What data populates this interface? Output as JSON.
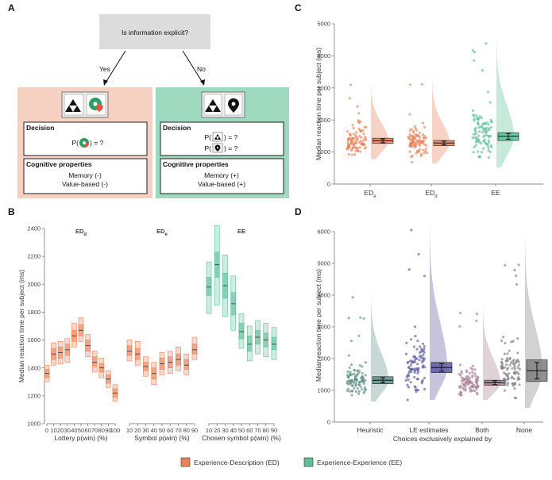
{
  "panel_labels": {
    "a": "A",
    "b": "B",
    "c": "C",
    "d": "D"
  },
  "colors": {
    "ed": "#e8825a",
    "ee": "#5cbf98",
    "ed_bg": "#f6d0c1",
    "ee_bg": "#9fd9bf",
    "heuristic": "#5f8f86",
    "le": "#5e5a9f",
    "both": "#a67f93",
    "none": "#7f7f7f"
  },
  "diagram": {
    "question": "Is information explicit?",
    "yes": "Yes",
    "no": "No",
    "left": {
      "decision_title": "Decision",
      "decision_prefix": "P(",
      "decision_suffix": ") = ?",
      "cog_title": "Cognitive properties",
      "cog_lines": [
        "Memory (-)",
        "Value-based (-)"
      ]
    },
    "right": {
      "decision_title": "Decision",
      "decision_lines": [
        {
          "prefix": "P(",
          "suffix": ") = ?"
        },
        {
          "prefix": "P(",
          "suffix": ") = ?"
        }
      ],
      "cog_title": "Cognitive properties",
      "cog_lines": [
        "Memory (+)",
        "Value-based (+)"
      ]
    }
  },
  "chart_data": [
    {
      "id": "B",
      "type": "bar",
      "ylabel": "Median reaction time per subject (ms)",
      "ylim": [
        1000,
        2400
      ],
      "yticks": [
        1000,
        1200,
        1400,
        1600,
        1800,
        2000,
        2200,
        2400
      ],
      "series": [
        {
          "name": "ED",
          "title": "ED",
          "title_sub": "d",
          "xlabel": "Lottery p(win) (%)",
          "color": "ed",
          "xticks": [
            "0",
            "10",
            "20",
            "30",
            "40",
            "50",
            "60",
            "70",
            "80",
            "90",
            "100"
          ],
          "points": [
            {
              "x": 0,
              "median": 1360,
              "inner": [
                1330,
                1390
              ],
              "outer": [
                1300,
                1420
              ]
            },
            {
              "x": 10,
              "median": 1500,
              "inner": [
                1460,
                1540
              ],
              "outer": [
                1420,
                1580
              ]
            },
            {
              "x": 20,
              "median": 1510,
              "inner": [
                1470,
                1550
              ],
              "outer": [
                1430,
                1590
              ]
            },
            {
              "x": 30,
              "median": 1530,
              "inner": [
                1490,
                1570
              ],
              "outer": [
                1440,
                1610
              ]
            },
            {
              "x": 40,
              "median": 1630,
              "inner": [
                1590,
                1670
              ],
              "outer": [
                1550,
                1720
              ]
            },
            {
              "x": 50,
              "median": 1670,
              "inner": [
                1630,
                1710
              ],
              "outer": [
                1590,
                1760
              ]
            },
            {
              "x": 60,
              "median": 1560,
              "inner": [
                1520,
                1600
              ],
              "outer": [
                1480,
                1640
              ]
            },
            {
              "x": 70,
              "median": 1440,
              "inner": [
                1410,
                1480
              ],
              "outer": [
                1370,
                1520
              ]
            },
            {
              "x": 80,
              "median": 1400,
              "inner": [
                1370,
                1430
              ],
              "outer": [
                1330,
                1470
              ]
            },
            {
              "x": 90,
              "median": 1320,
              "inner": [
                1290,
                1350
              ],
              "outer": [
                1260,
                1380
              ]
            },
            {
              "x": 100,
              "median": 1220,
              "inner": [
                1190,
                1250
              ],
              "outer": [
                1160,
                1280
              ]
            }
          ]
        },
        {
          "name": "ED",
          "title": "ED",
          "title_sub": "e",
          "xlabel": "Symbol p(win) (%)",
          "color": "ed",
          "xticks": [
            "10",
            "20",
            "30",
            "40",
            "50",
            "60",
            "70",
            "80",
            "90"
          ],
          "points": [
            {
              "x": 10,
              "median": 1520,
              "inner": [
                1490,
                1560
              ],
              "outer": [
                1450,
                1600
              ]
            },
            {
              "x": 20,
              "median": 1500,
              "inner": [
                1460,
                1540
              ],
              "outer": [
                1420,
                1590
              ]
            },
            {
              "x": 30,
              "median": 1410,
              "inner": [
                1380,
                1440
              ],
              "outer": [
                1340,
                1480
              ]
            },
            {
              "x": 40,
              "median": 1360,
              "inner": [
                1320,
                1400
              ],
              "outer": [
                1280,
                1440
              ]
            },
            {
              "x": 50,
              "median": 1430,
              "inner": [
                1390,
                1470
              ],
              "outer": [
                1350,
                1510
              ]
            },
            {
              "x": 60,
              "median": 1440,
              "inner": [
                1400,
                1480
              ],
              "outer": [
                1360,
                1520
              ]
            },
            {
              "x": 70,
              "median": 1460,
              "inner": [
                1420,
                1500
              ],
              "outer": [
                1380,
                1550
              ]
            },
            {
              "x": 80,
              "median": 1420,
              "inner": [
                1390,
                1460
              ],
              "outer": [
                1350,
                1500
              ]
            },
            {
              "x": 90,
              "median": 1530,
              "inner": [
                1500,
                1570
              ],
              "outer": [
                1460,
                1620
              ]
            }
          ]
        },
        {
          "name": "EE",
          "title": "EE",
          "title_sub": "",
          "xlabel": "Chosen symbol p(win) (%)",
          "color": "ee",
          "xticks": [
            "10",
            "20",
            "30",
            "40",
            "50",
            "60",
            "70",
            "80",
            "90"
          ],
          "points": [
            {
              "x": 10,
              "median": 1980,
              "inner": [
                1920,
                2050
              ],
              "outer": [
                1790,
                2160
              ]
            },
            {
              "x": 20,
              "median": 2140,
              "inner": [
                2050,
                2230
              ],
              "outer": [
                1850,
                2420
              ]
            },
            {
              "x": 30,
              "median": 1990,
              "inner": [
                1900,
                2080
              ],
              "outer": [
                1770,
                2210
              ]
            },
            {
              "x": 40,
              "median": 1860,
              "inner": [
                1780,
                1940
              ],
              "outer": [
                1670,
                2060
              ]
            },
            {
              "x": 50,
              "median": 1660,
              "inner": [
                1610,
                1720
              ],
              "outer": [
                1540,
                1790
              ]
            },
            {
              "x": 60,
              "median": 1570,
              "inner": [
                1520,
                1630
              ],
              "outer": [
                1450,
                1700
              ]
            },
            {
              "x": 70,
              "median": 1620,
              "inner": [
                1570,
                1670
              ],
              "outer": [
                1500,
                1740
              ]
            },
            {
              "x": 80,
              "median": 1600,
              "inner": [
                1550,
                1650
              ],
              "outer": [
                1480,
                1720
              ]
            },
            {
              "x": 90,
              "median": 1570,
              "inner": [
                1530,
                1620
              ],
              "outer": [
                1460,
                1690
              ]
            }
          ]
        }
      ]
    },
    {
      "id": "C",
      "type": "scatter",
      "ylabel": "Median reaction time per subject (ms)",
      "ylim": [
        0,
        5000
      ],
      "yticks": [
        0,
        1000,
        2000,
        3000,
        4000,
        5000
      ],
      "groups": [
        {
          "label": "ED",
          "label_sub": "e",
          "color": "ed",
          "mean": 1350,
          "ci": [
            1290,
            1410
          ],
          "box": [
            1270,
            1430
          ],
          "min": 780,
          "max": 3150
        },
        {
          "label": "ED",
          "label_sub": "d",
          "color": "ed",
          "mean": 1280,
          "ci": [
            1220,
            1340
          ],
          "box": [
            1200,
            1360
          ],
          "min": 650,
          "max": 3300
        },
        {
          "label": "EE",
          "label_sub": "",
          "color": "ee",
          "mean": 1490,
          "ci": [
            1400,
            1580
          ],
          "box": [
            1360,
            1600
          ],
          "min": 520,
          "max": 4550
        }
      ]
    },
    {
      "id": "D",
      "type": "scatter",
      "xlabel": "Choices exclusively explained by",
      "ylabel": "Median reaction time per subject (ms)",
      "ylim": [
        0,
        6000
      ],
      "yticks": [
        0,
        1000,
        2000,
        3000,
        4000,
        5000,
        6000
      ],
      "groups": [
        {
          "label": "Heuristic",
          "color": "heuristic",
          "mean": 1320,
          "ci": [
            1240,
            1400
          ],
          "box": [
            1210,
            1430
          ],
          "min": 650,
          "max": 4000
        },
        {
          "label": "LE estimates",
          "color": "le",
          "mean": 1720,
          "ci": [
            1600,
            1840
          ],
          "box": [
            1560,
            1880
          ],
          "min": 700,
          "max": 6250
        },
        {
          "label": "Both",
          "color": "both",
          "mean": 1240,
          "ci": [
            1180,
            1300
          ],
          "box": [
            1160,
            1320
          ],
          "min": 700,
          "max": 3650
        },
        {
          "label": "None",
          "color": "none",
          "mean": 1620,
          "ci": [
            1360,
            1880
          ],
          "box": [
            1280,
            1960
          ],
          "min": 450,
          "max": 5900
        }
      ]
    }
  ],
  "legend": [
    {
      "label": "Experience-Description (ED)",
      "color": "ed"
    },
    {
      "label": "Experience-Experience (EE)",
      "color": "ee"
    }
  ]
}
